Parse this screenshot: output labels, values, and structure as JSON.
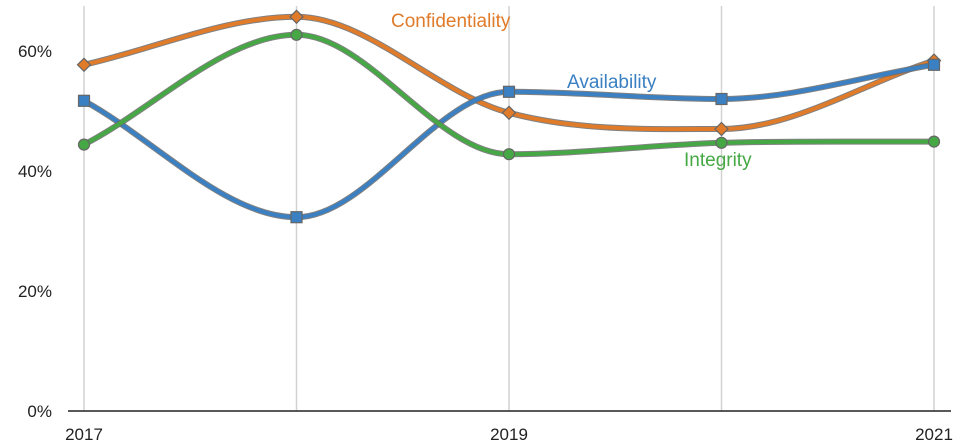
{
  "chart_data": {
    "type": "line",
    "x": [
      2017,
      2018,
      2019,
      2020,
      2021
    ],
    "x_tick_labels": [
      "2017",
      "",
      "2019",
      "",
      "2021"
    ],
    "y_tick_labels": [
      "0%",
      "20%",
      "40%",
      "60%"
    ],
    "ylim": [
      0,
      0.68
    ],
    "grid": "vertical",
    "series": [
      {
        "name": "Confidentiality",
        "color": "#e07b2a",
        "marker": "diamond",
        "values": [
          0.577,
          0.657,
          0.497,
          0.47,
          0.584
        ]
      },
      {
        "name": "Availability",
        "color": "#3a80c2",
        "marker": "square",
        "values": [
          0.517,
          0.323,
          0.532,
          0.52,
          0.577
        ]
      },
      {
        "name": "Integrity",
        "color": "#45a844",
        "marker": "circle",
        "values": [
          0.444,
          0.627,
          0.428,
          0.447,
          0.449
        ]
      }
    ]
  }
}
